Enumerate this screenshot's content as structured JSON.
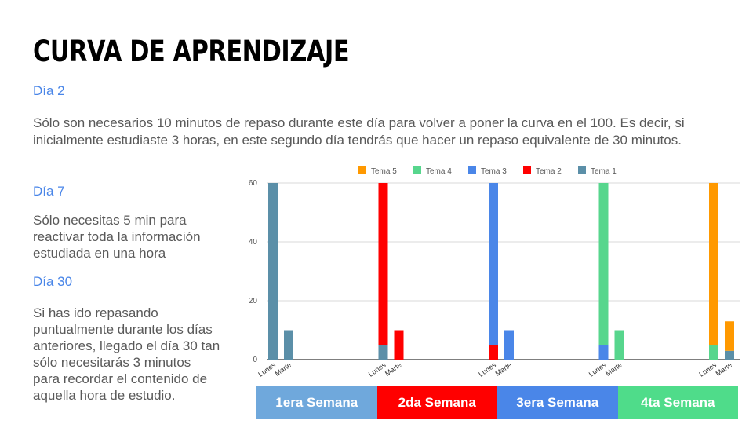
{
  "slide": {
    "title": "CURVA DE APRENDIZAJE",
    "day2_label": "Día 2",
    "day2_text": "Sólo son necesarios 10 minutos de repaso durante este día para volver a poner la curva en el 100. Es decir, si inicialmente estudiaste 3 horas, en este segundo día tendrás que hacer un repaso equivalente de 30 minutos.",
    "day7_label": "Día 7",
    "day7_text": "Sólo necesitas 5 min para reactivar toda la información estudiada en una hora",
    "day30_label": "Día 30",
    "day30_text": "Si has ido repasando puntualmente durante los días anteriores, llegado el día 30 tan sólo necesitarás 3 minutos para recordar el contenido de aquella hora de estudio."
  },
  "weeks": [
    {
      "label": "1era Semana",
      "color": "#6fa8dc"
    },
    {
      "label": "2da Semana",
      "color": "#ff0000"
    },
    {
      "label": "3era Semana",
      "color": "#4a86e8"
    },
    {
      "label": "4ta Semana",
      "color": "#4fdc8a"
    }
  ],
  "chart_data": {
    "type": "bar",
    "stacked": true,
    "ylim": [
      0,
      60
    ],
    "yticks": [
      0,
      20,
      40,
      60
    ],
    "legend_position": "top",
    "legend": [
      {
        "name": "Tema 5",
        "color": "#ff9900"
      },
      {
        "name": "Tema 4",
        "color": "#57d68d"
      },
      {
        "name": "Tema 3",
        "color": "#4a86e8"
      },
      {
        "name": "Tema 2",
        "color": "#ff0000"
      },
      {
        "name": "Tema 1",
        "color": "#5b8fa8"
      }
    ],
    "groups": [
      {
        "week": "1era Semana",
        "bars": [
          {
            "label": "Lunes",
            "segments": [
              {
                "series": "Tema 1",
                "value": 60
              }
            ]
          },
          {
            "label": "Marte",
            "segments": [
              {
                "series": "Tema 1",
                "value": 10
              }
            ]
          }
        ]
      },
      {
        "week": "2da Semana",
        "bars": [
          {
            "label": "Lunes",
            "segments": [
              {
                "series": "Tema 1",
                "value": 5
              },
              {
                "series": "Tema 2",
                "value": 55
              }
            ]
          },
          {
            "label": "Marte",
            "segments": [
              {
                "series": "Tema 2",
                "value": 10
              }
            ]
          }
        ]
      },
      {
        "week": "3era Semana",
        "bars": [
          {
            "label": "Lunes",
            "segments": [
              {
                "series": "Tema 2",
                "value": 5
              },
              {
                "series": "Tema 3",
                "value": 55
              }
            ]
          },
          {
            "label": "Marte",
            "segments": [
              {
                "series": "Tema 3",
                "value": 10
              }
            ]
          }
        ]
      },
      {
        "week": "4ta Semana",
        "bars": [
          {
            "label": "Lunes",
            "segments": [
              {
                "series": "Tema 3",
                "value": 5
              },
              {
                "series": "Tema 4",
                "value": 55
              }
            ]
          },
          {
            "label": "Marte",
            "segments": [
              {
                "series": "Tema 4",
                "value": 10
              }
            ]
          }
        ]
      },
      {
        "week": "",
        "bars": [
          {
            "label": "Lunes",
            "segments": [
              {
                "series": "Tema 4",
                "value": 5
              },
              {
                "series": "Tema 5",
                "value": 55
              }
            ]
          },
          {
            "label": "Marte",
            "segments": [
              {
                "series": "Tema 1",
                "value": 3
              },
              {
                "series": "Tema 5",
                "value": 10
              }
            ]
          }
        ]
      }
    ]
  }
}
